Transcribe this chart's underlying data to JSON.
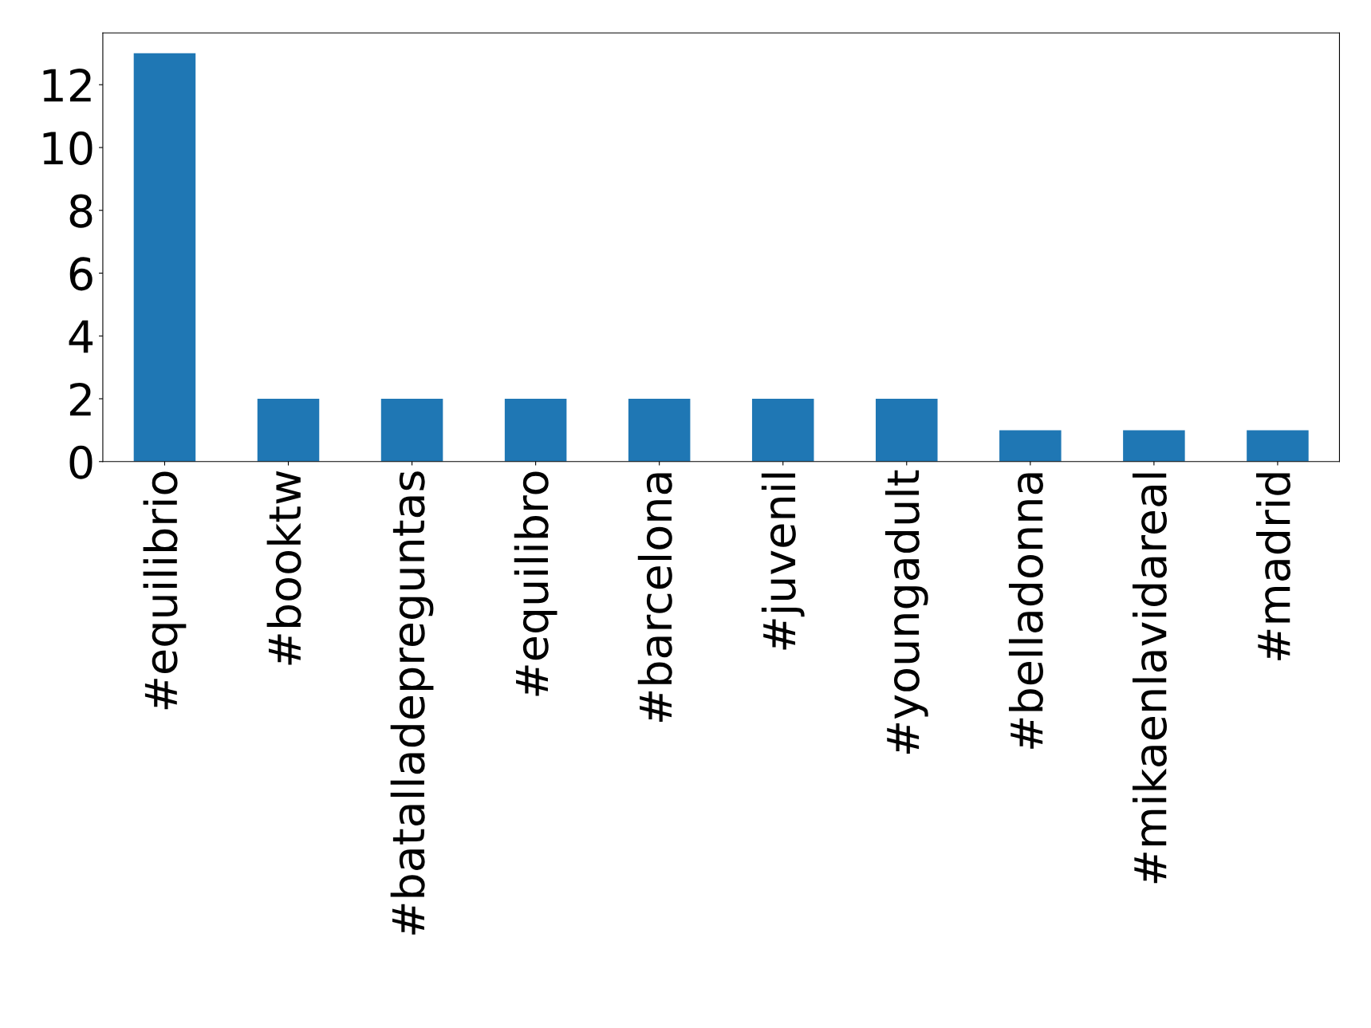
{
  "chart_data": {
    "type": "bar",
    "categories": [
      "#equilibrio",
      "#booktw",
      "#batalladepreguntas",
      "#equilibro",
      "#barcelona",
      "#juvenil",
      "#youngadult",
      "#belladonna",
      "#mikaenlavidareal",
      "#madrid"
    ],
    "values": [
      13,
      2,
      2,
      2,
      2,
      2,
      2,
      1,
      1,
      1
    ],
    "color": "#1f77b4",
    "ylim": [
      0,
      13.65
    ],
    "yticks": [
      0,
      2,
      4,
      6,
      8,
      10,
      12
    ],
    "grid": false,
    "legend": false
  }
}
